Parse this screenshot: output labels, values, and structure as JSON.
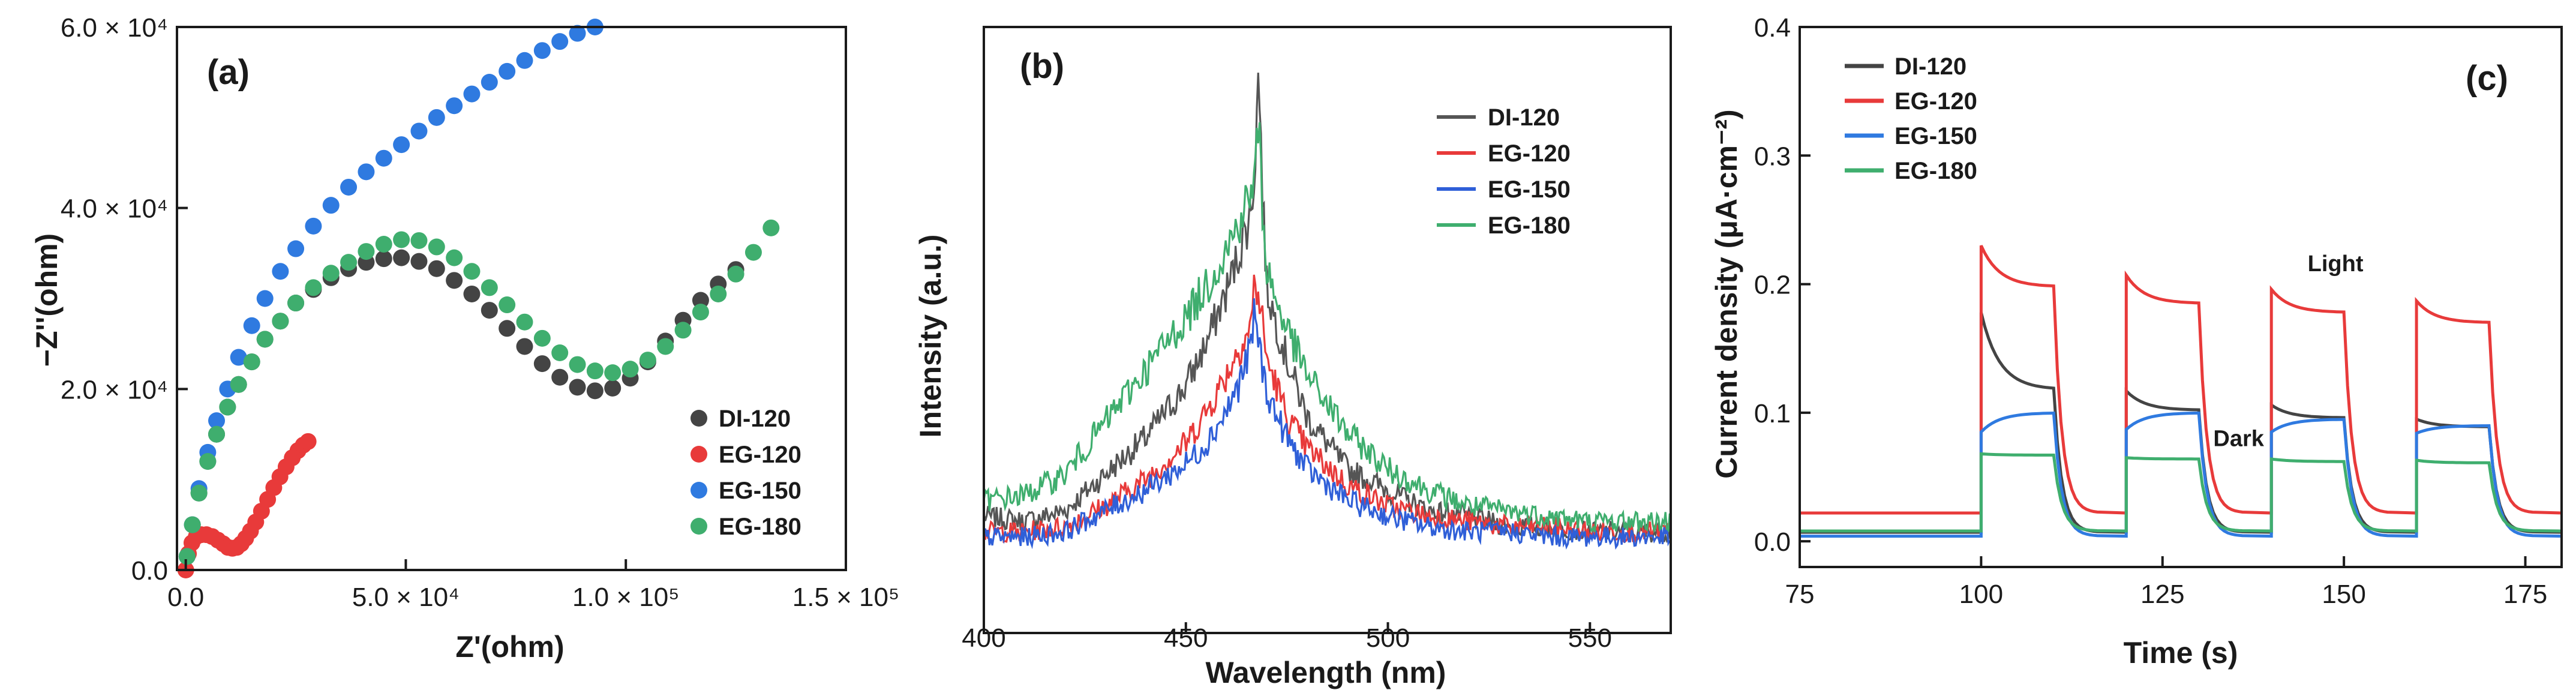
{
  "chart_data": [
    {
      "type": "scatter",
      "panel_label": "(a)",
      "title": "",
      "xlabel": "Z'(ohm)",
      "ylabel": "−Z''(ohm)",
      "xlim": [
        -2000,
        150000
      ],
      "ylim": [
        0,
        60000
      ],
      "xticks": [
        0,
        50000,
        100000,
        150000
      ],
      "xtick_labels": [
        "0.0",
        "5.0 × 10⁴",
        "1.0 × 10⁵",
        "1.5 × 10⁵"
      ],
      "yticks": [
        0,
        20000,
        40000,
        60000
      ],
      "ytick_labels": [
        "0.0",
        "2.0 × 10⁴",
        "4.0 × 10⁴",
        "6.0 × 10⁴"
      ],
      "legend": "bottom-right",
      "series": [
        {
          "name": "DI-120",
          "color": "#444444",
          "x": [
            300,
            1500,
            3000,
            5000,
            7000,
            9500,
            12000,
            15000,
            18000,
            21500,
            25000,
            29000,
            33000,
            37000,
            41000,
            45000,
            49000,
            53000,
            57000,
            61000,
            65000,
            69000,
            73000,
            77000,
            81000,
            85000,
            89000,
            93000,
            97000,
            101000,
            105000,
            109000,
            113000,
            117000,
            121000,
            125000
          ],
          "y": [
            1500,
            5000,
            8500,
            12000,
            15000,
            18000,
            20500,
            23000,
            25500,
            27500,
            29500,
            31000,
            32300,
            33300,
            34000,
            34400,
            34500,
            34100,
            33300,
            32000,
            30500,
            28700,
            26700,
            24700,
            22800,
            21300,
            20200,
            19800,
            20100,
            21200,
            23000,
            25300,
            27600,
            29800,
            31600,
            33200
          ]
        },
        {
          "name": "EG-120",
          "color": "#e83a3a",
          "x": [
            0,
            600,
            1400,
            2400,
            3500,
            4700,
            6000,
            7300,
            8500,
            9600,
            10600,
            11600,
            12600,
            13600,
            14700,
            15900,
            17200,
            18600,
            20000,
            21400,
            22800,
            24200,
            25500,
            26700,
            27800
          ],
          "y": [
            0,
            1800,
            3000,
            3700,
            3900,
            3900,
            3700,
            3300,
            2900,
            2500,
            2400,
            2500,
            2900,
            3500,
            4300,
            5300,
            6500,
            7800,
            9100,
            10300,
            11400,
            12400,
            13200,
            13800,
            14200
          ]
        },
        {
          "name": "EG-150",
          "color": "#2f7ae0",
          "x": [
            300,
            1500,
            3000,
            5000,
            7000,
            9500,
            12000,
            15000,
            18000,
            21500,
            25000,
            29000,
            33000,
            37000,
            41000,
            45000,
            49000,
            53000,
            57000,
            61000,
            65000,
            69000,
            73000,
            77000,
            81000,
            85000,
            89000,
            93000
          ],
          "y": [
            1500,
            5000,
            9000,
            13000,
            16500,
            20000,
            23500,
            27000,
            30000,
            33000,
            35500,
            38000,
            40300,
            42300,
            44000,
            45500,
            47000,
            48500,
            50000,
            51300,
            52600,
            53900,
            55100,
            56300,
            57400,
            58400,
            59300,
            60000
          ]
        },
        {
          "name": "EG-180",
          "color": "#3fae6e",
          "x": [
            300,
            1500,
            3000,
            5000,
            7000,
            9500,
            12000,
            15000,
            18000,
            21500,
            25000,
            29000,
            33000,
            37000,
            41000,
            45000,
            49000,
            53000,
            57000,
            61000,
            65000,
            69000,
            73000,
            77000,
            81000,
            85000,
            89000,
            93000,
            97000,
            101000,
            105000,
            109000,
            113000,
            117000,
            121000,
            125000,
            129000,
            133000
          ],
          "y": [
            1500,
            5000,
            8500,
            12000,
            15000,
            18000,
            20500,
            23000,
            25500,
            27500,
            29500,
            31200,
            32800,
            34000,
            35200,
            36000,
            36500,
            36400,
            35700,
            34500,
            33000,
            31200,
            29300,
            27400,
            25600,
            24000,
            22700,
            22000,
            21800,
            22200,
            23200,
            24700,
            26500,
            28500,
            30500,
            32700,
            35100,
            37800
          ]
        }
      ]
    },
    {
      "type": "line",
      "panel_label": "(b)",
      "title": "",
      "xlabel": "Wavelength (nm)",
      "ylabel": "Intensity (a.u.)",
      "xlim": [
        400,
        570
      ],
      "ylim": [
        0,
        1
      ],
      "xticks": [
        400,
        450,
        500,
        550
      ],
      "xtick_labels": [
        "400",
        "450",
        "500",
        "550"
      ],
      "legend": "top-right",
      "series": [
        {
          "name": "DI-120",
          "color": "#555555",
          "x": [
            400,
            410,
            420,
            430,
            440,
            450,
            455,
            460,
            463,
            466,
            467,
            468,
            469,
            470,
            472,
            475,
            480,
            490,
            500,
            510,
            520,
            530,
            540,
            550,
            560,
            570
          ],
          "y": [
            0.08,
            0.07,
            0.09,
            0.16,
            0.23,
            0.33,
            0.41,
            0.51,
            0.58,
            0.66,
            0.74,
            0.94,
            0.7,
            0.52,
            0.46,
            0.38,
            0.27,
            0.17,
            0.13,
            0.09,
            0.08,
            0.06,
            0.06,
            0.05,
            0.05,
            0.05
          ]
        },
        {
          "name": "EG-120",
          "color": "#e83a3a",
          "x": [
            400,
            410,
            420,
            430,
            440,
            450,
            455,
            460,
            463,
            466,
            467,
            468,
            469,
            470,
            472,
            475,
            480,
            490,
            500,
            510,
            520,
            530,
            540,
            550,
            560,
            570
          ],
          "y": [
            0.05,
            0.05,
            0.06,
            0.1,
            0.15,
            0.22,
            0.28,
            0.35,
            0.4,
            0.44,
            0.53,
            0.5,
            0.45,
            0.38,
            0.34,
            0.27,
            0.21,
            0.14,
            0.1,
            0.08,
            0.07,
            0.06,
            0.06,
            0.05,
            0.05,
            0.05
          ]
        },
        {
          "name": "EG-150",
          "color": "#2f5fd8",
          "x": [
            400,
            410,
            420,
            430,
            440,
            450,
            455,
            460,
            463,
            466,
            467,
            468,
            469,
            470,
            472,
            475,
            480,
            490,
            500,
            510,
            520,
            530,
            540,
            550,
            560,
            570
          ],
          "y": [
            0.04,
            0.04,
            0.05,
            0.09,
            0.13,
            0.18,
            0.22,
            0.28,
            0.33,
            0.4,
            0.47,
            0.42,
            0.36,
            0.32,
            0.28,
            0.23,
            0.17,
            0.11,
            0.08,
            0.06,
            0.05,
            0.05,
            0.04,
            0.04,
            0.04,
            0.04
          ]
        },
        {
          "name": "EG-180",
          "color": "#3fae6e",
          "x": [
            400,
            410,
            420,
            430,
            440,
            450,
            455,
            460,
            463,
            466,
            467,
            468,
            469,
            470,
            472,
            475,
            480,
            490,
            500,
            510,
            520,
            530,
            540,
            550,
            560,
            570
          ],
          "y": [
            0.11,
            0.12,
            0.16,
            0.26,
            0.36,
            0.46,
            0.52,
            0.59,
            0.64,
            0.7,
            0.72,
            0.84,
            0.66,
            0.56,
            0.5,
            0.44,
            0.35,
            0.24,
            0.17,
            0.13,
            0.1,
            0.09,
            0.08,
            0.07,
            0.07,
            0.07
          ]
        }
      ]
    },
    {
      "type": "line",
      "panel_label": "(c)",
      "title": "",
      "xlabel": "Time (s)",
      "ylabel": "Current density (μA·cm⁻²)",
      "xlim": [
        75,
        180
      ],
      "ylim": [
        -0.02,
        0.4
      ],
      "xticks": [
        75,
        100,
        125,
        150,
        175
      ],
      "xtick_labels": [
        "75",
        "100",
        "125",
        "150",
        "175"
      ],
      "yticks": [
        0.0,
        0.1,
        0.2,
        0.3,
        0.4
      ],
      "ytick_labels": [
        "0.0",
        "0.1",
        "0.2",
        "0.3",
        "0.4"
      ],
      "legend": "top-left",
      "annotations": [
        {
          "text": "Light",
          "x": 145,
          "y": 0.21
        },
        {
          "text": "Dark",
          "x": 132,
          "y": 0.074
        }
      ],
      "series": [
        {
          "name": "DI-120",
          "color": "#444444",
          "baseline": 0.007,
          "pulses": [
            [
              100,
              110,
              0.178,
              0.118
            ],
            [
              120,
              130,
              0.117,
              0.102
            ],
            [
              140,
              150,
              0.106,
              0.096
            ],
            [
              160,
              170,
              0.095,
              0.089
            ]
          ]
        },
        {
          "name": "EG-120",
          "color": "#e83a3a",
          "baseline": 0.022,
          "pulses": [
            [
              100,
              110,
              0.23,
              0.198
            ],
            [
              120,
              130,
              0.207,
              0.185
            ],
            [
              140,
              150,
              0.196,
              0.178
            ],
            [
              160,
              170,
              0.187,
              0.17
            ]
          ]
        },
        {
          "name": "EG-150",
          "color": "#2f7ae0",
          "baseline": 0.004,
          "pulses": [
            [
              100,
              110,
              0.085,
              0.1
            ],
            [
              120,
              130,
              0.087,
              0.1
            ],
            [
              140,
              150,
              0.085,
              0.095
            ],
            [
              160,
              170,
              0.084,
              0.09
            ]
          ]
        },
        {
          "name": "EG-180",
          "color": "#3fae6e",
          "baseline": 0.008,
          "pulses": [
            [
              100,
              110,
              0.068,
              0.067
            ],
            [
              120,
              130,
              0.065,
              0.064
            ],
            [
              140,
              150,
              0.064,
              0.062
            ],
            [
              160,
              170,
              0.063,
              0.061
            ]
          ]
        }
      ]
    }
  ]
}
